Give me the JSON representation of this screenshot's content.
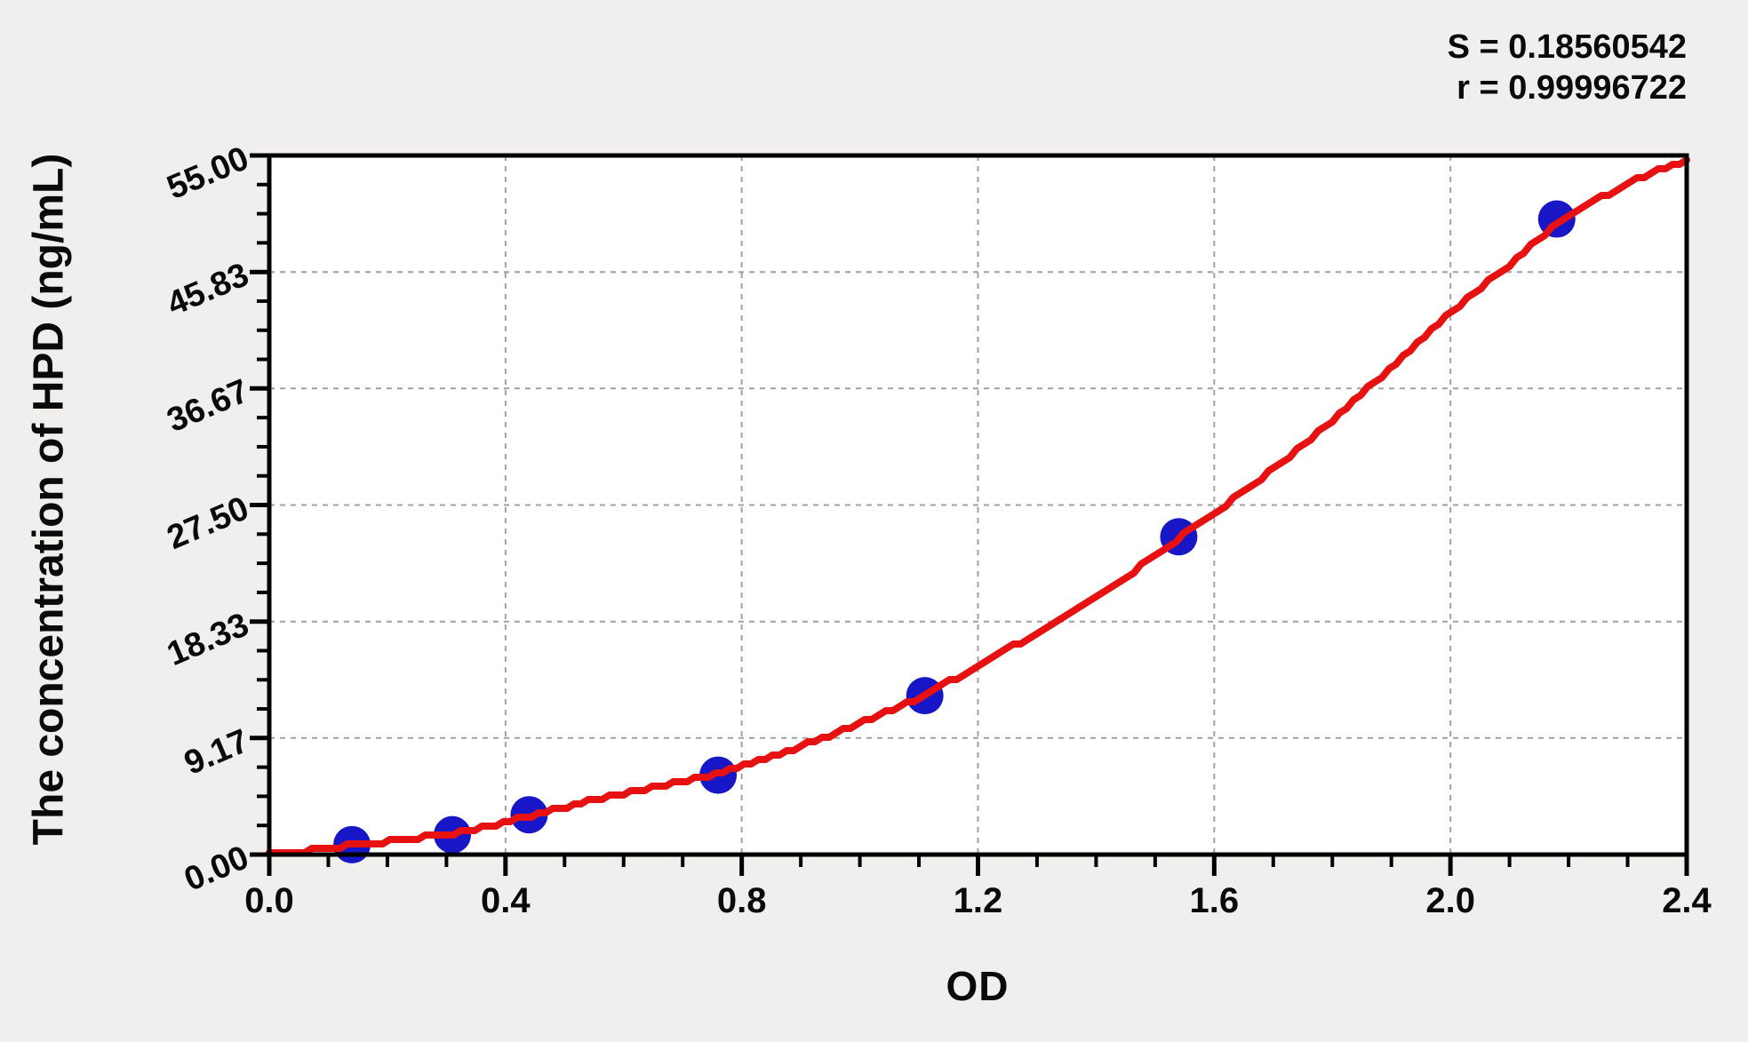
{
  "stats": {
    "s_line": "S = 0.18560542",
    "r_line": "r = 0.99996722"
  },
  "chart_data": {
    "type": "scatter",
    "title": "",
    "xlabel": "OD",
    "ylabel": "The concentration of HPD (ng/mL)",
    "xlim": [
      0.0,
      2.4
    ],
    "ylim": [
      0.0,
      55.0
    ],
    "x_ticks": [
      {
        "label": "0.0",
        "value": 0.0
      },
      {
        "label": "0.4",
        "value": 0.4
      },
      {
        "label": "0.8",
        "value": 0.8
      },
      {
        "label": "1.2",
        "value": 1.2
      },
      {
        "label": "1.6",
        "value": 1.6
      },
      {
        "label": "2.0",
        "value": 2.0
      },
      {
        "label": "2.4",
        "value": 2.4
      }
    ],
    "x_minor_step": 0.1,
    "y_ticks": [
      {
        "label": "0.00",
        "value": 0.0
      },
      {
        "label": "9.17",
        "value": 9.17
      },
      {
        "label": "18.33",
        "value": 18.33
      },
      {
        "label": "27.50",
        "value": 27.5
      },
      {
        "label": "36.67",
        "value": 36.67
      },
      {
        "label": "45.83",
        "value": 45.83
      },
      {
        "label": "55.00",
        "value": 55.0
      }
    ],
    "y_minor_divisions": 4,
    "grid": {
      "style": "dashed",
      "color": "#a0a0a0",
      "at_x": [
        0.4,
        0.8,
        1.2,
        1.6,
        2.0
      ],
      "at_y": [
        9.17,
        18.33,
        27.5,
        36.67,
        45.83
      ]
    },
    "legend": "none",
    "colors": {
      "curve": "#e81111",
      "points": "#1717c8",
      "axis": "#000000",
      "plot_bg": "#ffffff",
      "page_bg": "#f0efed"
    },
    "series": [
      {
        "name": "standard-points",
        "type": "scatter",
        "points": [
          [
            0.14,
            0.78
          ],
          [
            0.31,
            1.56
          ],
          [
            0.44,
            3.13
          ],
          [
            0.76,
            6.25
          ],
          [
            1.11,
            12.5
          ],
          [
            1.54,
            25.0
          ],
          [
            2.18,
            50.0
          ]
        ]
      },
      {
        "name": "fitted-curve",
        "type": "line",
        "points": [
          [
            0.0,
            0.05
          ],
          [
            0.06,
            0.25
          ],
          [
            0.14,
            0.75
          ],
          [
            0.22,
            1.15
          ],
          [
            0.31,
            1.6
          ],
          [
            0.38,
            2.3
          ],
          [
            0.44,
            3.05
          ],
          [
            0.52,
            3.95
          ],
          [
            0.6,
            4.8
          ],
          [
            0.68,
            5.55
          ],
          [
            0.76,
            6.3
          ],
          [
            0.85,
            7.7
          ],
          [
            0.95,
            9.4
          ],
          [
            1.05,
            11.3
          ],
          [
            1.11,
            12.5
          ],
          [
            1.2,
            14.9
          ],
          [
            1.3,
            17.4
          ],
          [
            1.4,
            20.3
          ],
          [
            1.47,
            22.5
          ],
          [
            1.54,
            24.9
          ],
          [
            1.62,
            27.5
          ],
          [
            1.7,
            30.3
          ],
          [
            1.8,
            34.2
          ],
          [
            1.9,
            38.3
          ],
          [
            2.0,
            42.7
          ],
          [
            2.1,
            46.4
          ],
          [
            2.18,
            49.6
          ],
          [
            2.25,
            51.6
          ],
          [
            2.31,
            53.0
          ],
          [
            2.36,
            54.0
          ],
          [
            2.4,
            54.6
          ]
        ]
      }
    ],
    "fit_stats": {
      "S": "0.18560542",
      "r": "0.99996722"
    }
  }
}
